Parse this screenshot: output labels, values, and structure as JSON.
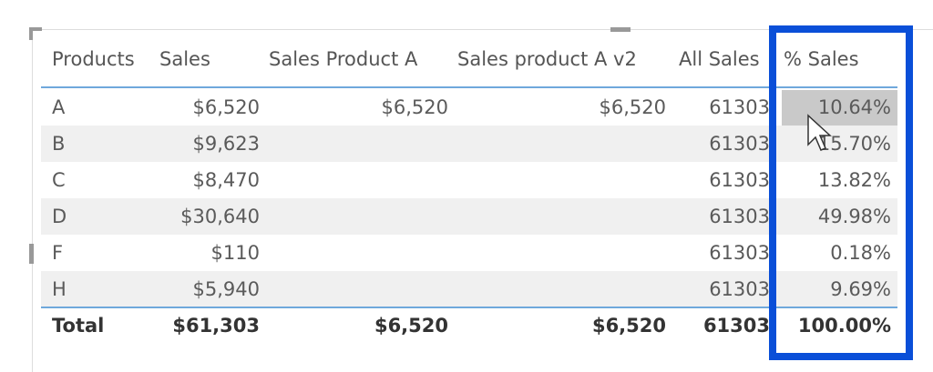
{
  "table": {
    "columns": [
      "Products",
      "Sales",
      "Sales Product A",
      "Sales product A v2",
      "All Sales",
      "% Sales"
    ],
    "rows": [
      [
        "A",
        "$6,520",
        "$6,520",
        "$6,520",
        "61303",
        "10.64%"
      ],
      [
        "B",
        "$9,623",
        "",
        "",
        "61303",
        "15.70%"
      ],
      [
        "C",
        "$8,470",
        "",
        "",
        "61303",
        "13.82%"
      ],
      [
        "D",
        "$30,640",
        "",
        "",
        "61303",
        "49.98%"
      ],
      [
        "F",
        "$110",
        "",
        "",
        "61303",
        "0.18%"
      ],
      [
        "H",
        "$5,940",
        "",
        "",
        "61303",
        "9.69%"
      ]
    ],
    "total": [
      "Total",
      "$61,303",
      "$6,520",
      "$6,520",
      "61303",
      "100.00%"
    ]
  }
}
